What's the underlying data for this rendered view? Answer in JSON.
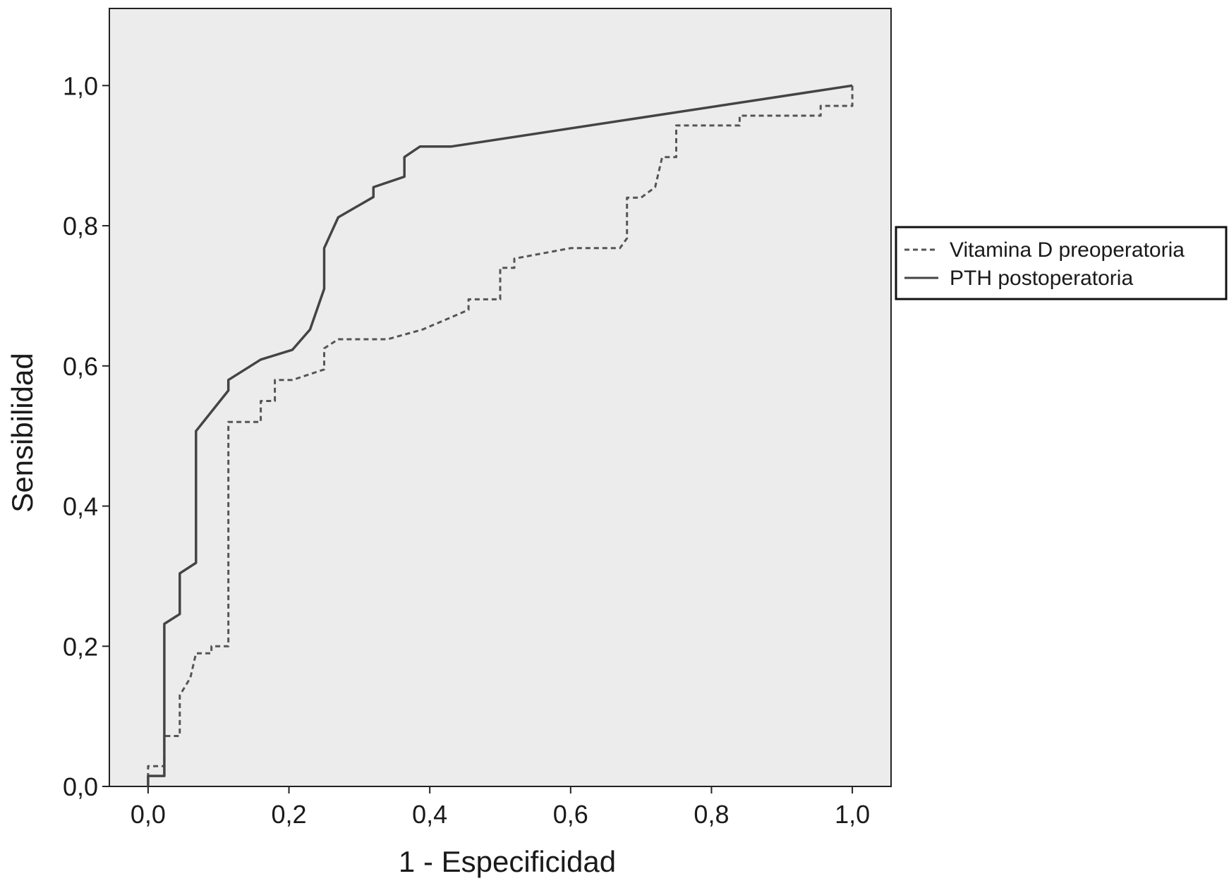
{
  "chart_data": {
    "type": "line",
    "title": "",
    "xlabel": "1 - Especificidad",
    "ylabel": "Sensibilidad",
    "xlim": [
      -0.055,
      1.055
    ],
    "ylim": [
      0,
      1.11
    ],
    "xticks": [
      {
        "value": 0.0,
        "label": "0,0"
      },
      {
        "value": 0.2,
        "label": "0,2"
      },
      {
        "value": 0.4,
        "label": "0,4"
      },
      {
        "value": 0.6,
        "label": "0,6"
      },
      {
        "value": 0.8,
        "label": "0,8"
      },
      {
        "value": 1.0,
        "label": "1,0"
      }
    ],
    "yticks": [
      {
        "value": 0.0,
        "label": "0,0"
      },
      {
        "value": 0.2,
        "label": "0,2"
      },
      {
        "value": 0.4,
        "label": "0,4"
      },
      {
        "value": 0.6,
        "label": "0,6"
      },
      {
        "value": 0.8,
        "label": "0,8"
      },
      {
        "value": 1.0,
        "label": "1,0"
      }
    ],
    "grid": false,
    "legend_position": "right",
    "plot_background": "#ececec",
    "series": [
      {
        "name": "Vitamina D preoperatoria",
        "style": "dashed",
        "color": "#555555",
        "points": [
          [
            0.0,
            0.0
          ],
          [
            0.0,
            0.029
          ],
          [
            0.023,
            0.029
          ],
          [
            0.023,
            0.072
          ],
          [
            0.045,
            0.072
          ],
          [
            0.045,
            0.13
          ],
          [
            0.06,
            0.155
          ],
          [
            0.068,
            0.19
          ],
          [
            0.09,
            0.19
          ],
          [
            0.09,
            0.2
          ],
          [
            0.114,
            0.2
          ],
          [
            0.114,
            0.52
          ],
          [
            0.16,
            0.52
          ],
          [
            0.16,
            0.55
          ],
          [
            0.18,
            0.55
          ],
          [
            0.18,
            0.58
          ],
          [
            0.205,
            0.58
          ],
          [
            0.25,
            0.595
          ],
          [
            0.25,
            0.625
          ],
          [
            0.27,
            0.638
          ],
          [
            0.34,
            0.638
          ],
          [
            0.39,
            0.652
          ],
          [
            0.455,
            0.68
          ],
          [
            0.455,
            0.695
          ],
          [
            0.5,
            0.695
          ],
          [
            0.5,
            0.74
          ],
          [
            0.52,
            0.74
          ],
          [
            0.52,
            0.753
          ],
          [
            0.6,
            0.768
          ],
          [
            0.67,
            0.768
          ],
          [
            0.68,
            0.782
          ],
          [
            0.68,
            0.84
          ],
          [
            0.7,
            0.84
          ],
          [
            0.72,
            0.855
          ],
          [
            0.73,
            0.898
          ],
          [
            0.75,
            0.898
          ],
          [
            0.75,
            0.943
          ],
          [
            0.84,
            0.943
          ],
          [
            0.84,
            0.957
          ],
          [
            0.955,
            0.957
          ],
          [
            0.955,
            0.971
          ],
          [
            1.0,
            0.971
          ],
          [
            1.0,
            1.0
          ]
        ]
      },
      {
        "name": "PTH postoperatoria",
        "style": "solid",
        "color": "#444444",
        "points": [
          [
            0.0,
            0.0
          ],
          [
            0.0,
            0.015
          ],
          [
            0.023,
            0.015
          ],
          [
            0.023,
            0.232
          ],
          [
            0.045,
            0.246
          ],
          [
            0.045,
            0.304
          ],
          [
            0.068,
            0.319
          ],
          [
            0.068,
            0.507
          ],
          [
            0.114,
            0.565
          ],
          [
            0.114,
            0.58
          ],
          [
            0.16,
            0.609
          ],
          [
            0.205,
            0.623
          ],
          [
            0.23,
            0.652
          ],
          [
            0.25,
            0.71
          ],
          [
            0.25,
            0.768
          ],
          [
            0.27,
            0.812
          ],
          [
            0.32,
            0.841
          ],
          [
            0.32,
            0.855
          ],
          [
            0.364,
            0.87
          ],
          [
            0.364,
            0.898
          ],
          [
            0.386,
            0.913
          ],
          [
            0.43,
            0.913
          ],
          [
            1.0,
            1.0
          ]
        ]
      }
    ]
  }
}
